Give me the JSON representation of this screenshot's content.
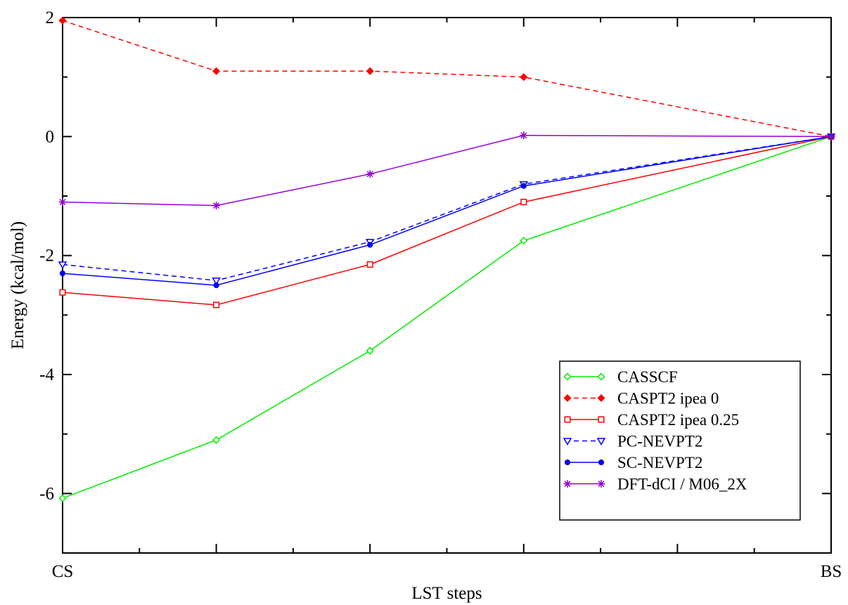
{
  "chart_data": {
    "type": "line",
    "title": "",
    "xlabel": "LST steps",
    "ylabel": "Energy (kcal/mol)",
    "xlim": [
      0,
      5
    ],
    "ylim": [
      -7,
      2
    ],
    "x_tick_labels": [
      {
        "x": 0,
        "label": "CS"
      },
      {
        "x": 5,
        "label": "BS"
      }
    ],
    "x_major_ticks": [
      0,
      1,
      2,
      3,
      4,
      5
    ],
    "x_minor_ticks": [
      0.5,
      1.5,
      2.5,
      3.5,
      4.5
    ],
    "y_ticks": [
      -6,
      -4,
      -2,
      0,
      2
    ],
    "y_minor_ticks": [
      -7,
      -5,
      -3,
      -1,
      1
    ],
    "grid": false,
    "legend_position": "bottom-right",
    "x": [
      0,
      1,
      2,
      3,
      5
    ],
    "series": [
      {
        "name": "CASSCF",
        "color": "#00ee00",
        "dash": "solid",
        "marker": "diamond",
        "values": [
          -6.08,
          -5.1,
          -3.6,
          -1.75,
          0
        ]
      },
      {
        "name": "CASPT2 ipea 0",
        "color": "#ff0000",
        "dash": "dashed",
        "marker": "diamond-filled",
        "values": [
          1.95,
          1.1,
          1.1,
          1.0,
          0
        ]
      },
      {
        "name": "CASPT2 ipea 0.25",
        "color": "#ff0000",
        "dash": "solid",
        "marker": "square",
        "values": [
          -2.62,
          -2.83,
          -2.15,
          -1.1,
          0
        ]
      },
      {
        "name": "PC-NEVPT2",
        "color": "#0000ff",
        "dash": "dashed",
        "marker": "triangle-down",
        "values": [
          -2.15,
          -2.42,
          -1.77,
          -0.8,
          0
        ]
      },
      {
        "name": "SC-NEVPT2",
        "color": "#0000ff",
        "dash": "solid",
        "marker": "circle",
        "values": [
          -2.3,
          -2.5,
          -1.82,
          -0.83,
          0
        ]
      },
      {
        "name": "DFT-dCI / M06_2X",
        "color": "#9400d3",
        "dash": "solid",
        "marker": "star",
        "values": [
          -1.1,
          -1.16,
          -0.63,
          0.02,
          0
        ]
      }
    ]
  }
}
